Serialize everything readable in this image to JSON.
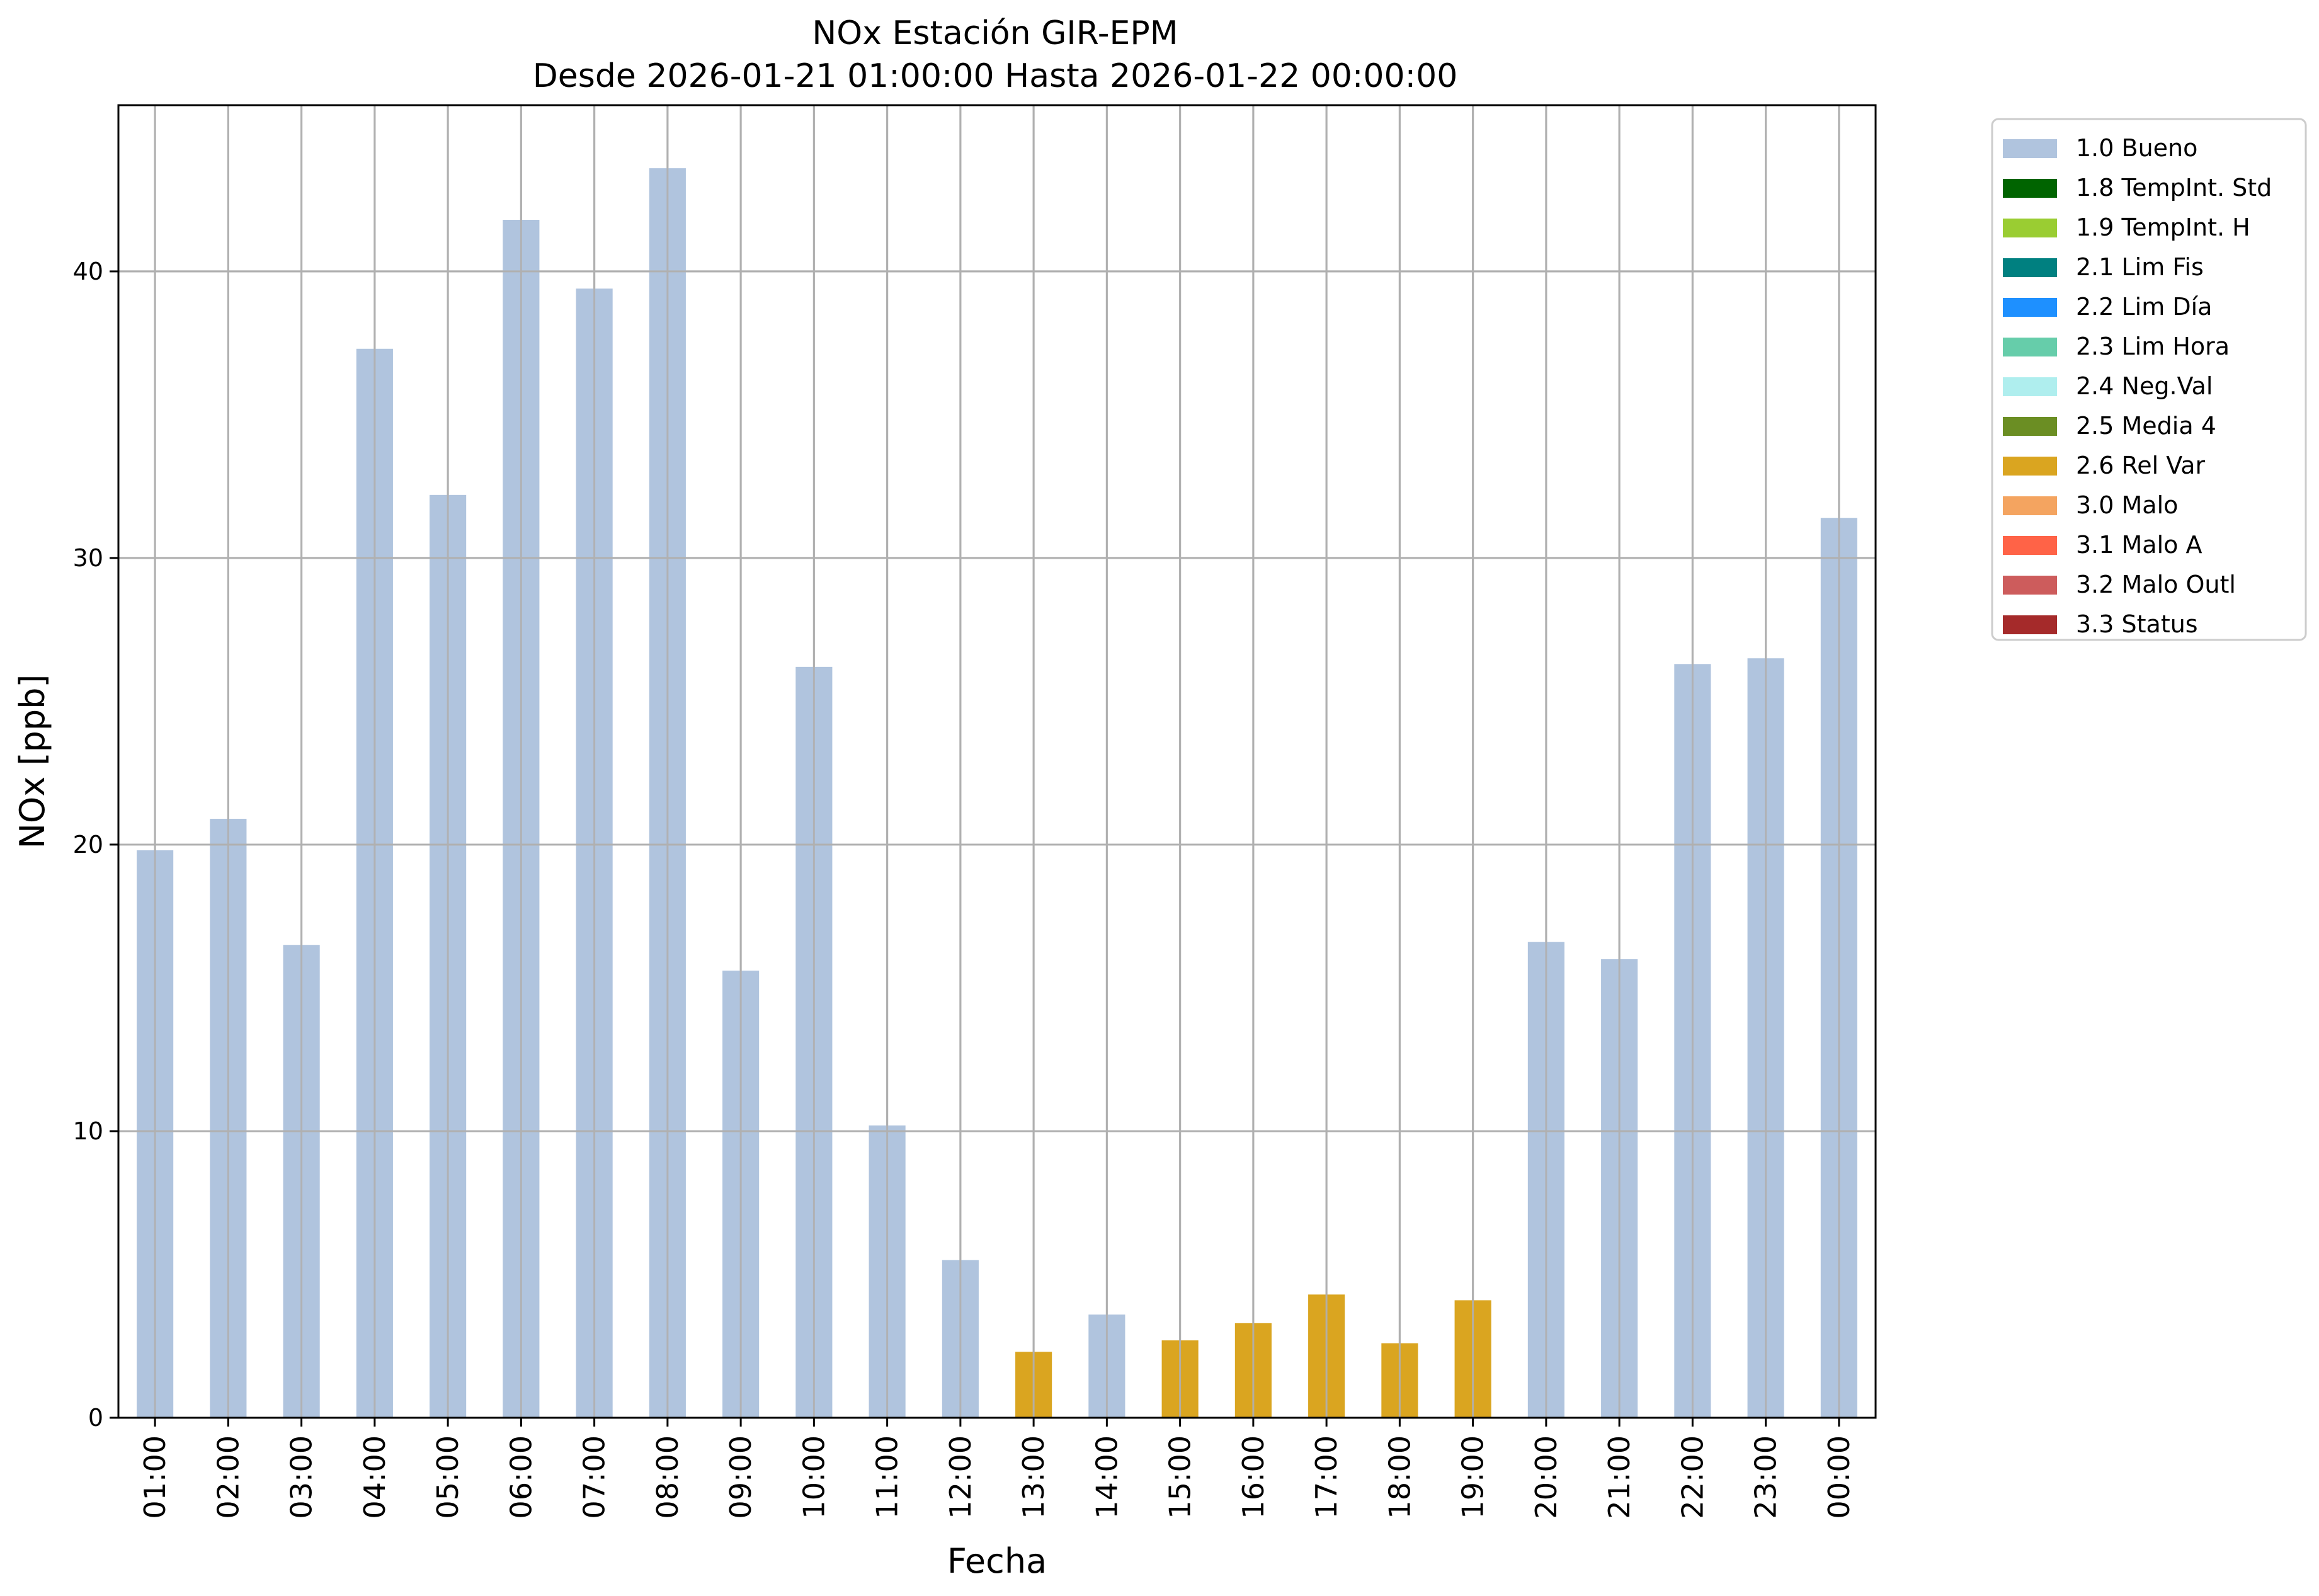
{
  "chart_data": {
    "type": "bar",
    "title": "NOx Estación GIR-EPM",
    "subtitle": "Desde 2026-01-21 01:00:00 Hasta 2026-01-22 00:00:00",
    "xlabel": "Fecha",
    "ylabel": "NOx [ppb]",
    "ylim": [
      0,
      45.8
    ],
    "yticks": [
      0,
      10,
      20,
      30,
      40
    ],
    "grid": true,
    "legend_position": "outside-top-right",
    "categories": [
      "01:00",
      "02:00",
      "03:00",
      "04:00",
      "05:00",
      "06:00",
      "07:00",
      "08:00",
      "09:00",
      "10:00",
      "11:00",
      "12:00",
      "13:00",
      "14:00",
      "15:00",
      "16:00",
      "17:00",
      "18:00",
      "19:00",
      "20:00",
      "21:00",
      "22:00",
      "23:00",
      "00:00"
    ],
    "values": [
      19.8,
      20.9,
      16.5,
      37.3,
      32.2,
      41.8,
      39.4,
      43.6,
      15.6,
      26.2,
      10.2,
      5.5,
      2.3,
      3.6,
      2.7,
      3.3,
      4.3,
      2.6,
      4.1,
      16.6,
      16.0,
      26.3,
      26.5,
      31.4
    ],
    "flags": [
      "1.0 Bueno",
      "1.0 Bueno",
      "1.0 Bueno",
      "1.0 Bueno",
      "1.0 Bueno",
      "1.0 Bueno",
      "1.0 Bueno",
      "1.0 Bueno",
      "1.0 Bueno",
      "1.0 Bueno",
      "1.0 Bueno",
      "1.0 Bueno",
      "2.6 Rel Var",
      "1.0 Bueno",
      "2.6 Rel Var",
      "2.6 Rel Var",
      "2.6 Rel Var",
      "2.6 Rel Var",
      "2.6 Rel Var",
      "1.0 Bueno",
      "1.0 Bueno",
      "1.0 Bueno",
      "1.0 Bueno",
      "1.0 Bueno"
    ],
    "legend": [
      {
        "label": "1.0 Bueno",
        "color": "#b0c4de"
      },
      {
        "label": "1.8 TempInt. Std",
        "color": "#006400"
      },
      {
        "label": "1.9 TempInt. H",
        "color": "#9acd32"
      },
      {
        "label": "2.1 Lim Fis",
        "color": "#008080"
      },
      {
        "label": "2.2 Lim Día",
        "color": "#1e90ff"
      },
      {
        "label": "2.3 Lim Hora",
        "color": "#66cdaa"
      },
      {
        "label": "2.4 Neg.Val",
        "color": "#afeeee"
      },
      {
        "label": "2.5 Media 4",
        "color": "#6b8e23"
      },
      {
        "label": "2.6 Rel Var",
        "color": "#daa520"
      },
      {
        "label": "3.0 Malo",
        "color": "#f4a460"
      },
      {
        "label": "3.1 Malo A",
        "color": "#ff6347"
      },
      {
        "label": "3.2 Malo Outl",
        "color": "#cd5c5c"
      },
      {
        "label": "3.3 Status",
        "color": "#a52a2a"
      }
    ]
  }
}
